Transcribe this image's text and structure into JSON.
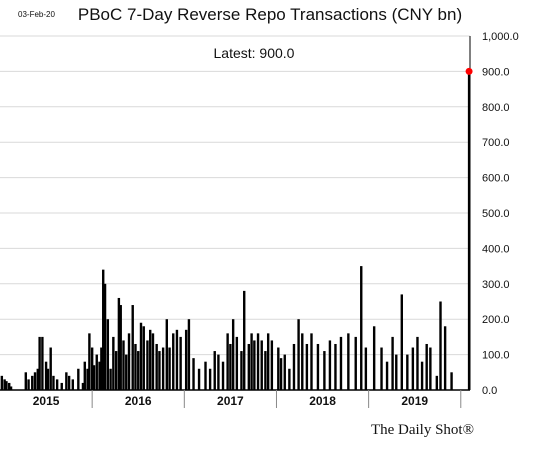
{
  "header": {
    "date": "03-Feb-20",
    "title": "PBoC 7-Day Reverse Repo Transactions (CNY bn)"
  },
  "annotation": {
    "latest": "Latest:  900.0"
  },
  "brand": "The Daily Shot®",
  "colors": {
    "bars": "#000000",
    "marker": "#ff0000",
    "grid": "#d9d9d9"
  },
  "chart_data": {
    "type": "bar",
    "title": "PBoC 7-Day Reverse Repo Transactions (CNY bn)",
    "xlabel": "",
    "ylabel": "",
    "ylim": [
      0,
      1000
    ],
    "yticks": [
      "1,000.0",
      "900.0",
      "800.0",
      "700.0",
      "600.0",
      "500.0",
      "400.0",
      "300.0",
      "200.0",
      "100.0",
      "0.0"
    ],
    "ytick_values": [
      1000,
      900,
      800,
      700,
      600,
      500,
      400,
      300,
      200,
      100,
      0
    ],
    "xlim": [
      2015.0,
      2020.1
    ],
    "year_labels": [
      "2015",
      "2016",
      "2017",
      "2018",
      "2019"
    ],
    "year_label_positions": [
      2015.5,
      2016.5,
      2017.5,
      2018.5,
      2019.5
    ],
    "year_boundaries": [
      2016,
      2017,
      2018,
      2019,
      2020
    ],
    "grid": true,
    "latest_value": 900,
    "latest_date": 2020.09,
    "series": [
      {
        "values": [
          [
            2015.02,
            40
          ],
          [
            2015.05,
            30
          ],
          [
            2015.07,
            25
          ],
          [
            2015.1,
            20
          ],
          [
            2015.12,
            10
          ],
          [
            2015.28,
            50
          ],
          [
            2015.31,
            30
          ],
          [
            2015.35,
            40
          ],
          [
            2015.38,
            50
          ],
          [
            2015.41,
            60
          ],
          [
            2015.43,
            150
          ],
          [
            2015.46,
            150
          ],
          [
            2015.5,
            80
          ],
          [
            2015.52,
            60
          ],
          [
            2015.55,
            120
          ],
          [
            2015.58,
            40
          ],
          [
            2015.62,
            30
          ],
          [
            2015.67,
            20
          ],
          [
            2015.72,
            50
          ],
          [
            2015.75,
            40
          ],
          [
            2015.79,
            30
          ],
          [
            2015.85,
            60
          ],
          [
            2015.9,
            20
          ],
          [
            2015.92,
            80
          ],
          [
            2015.95,
            60
          ],
          [
            2015.97,
            160
          ],
          [
            2016.0,
            120
          ],
          [
            2016.02,
            70
          ],
          [
            2016.05,
            100
          ],
          [
            2016.08,
            80
          ],
          [
            2016.1,
            120
          ],
          [
            2016.12,
            340
          ],
          [
            2016.14,
            300
          ],
          [
            2016.17,
            200
          ],
          [
            2016.2,
            60
          ],
          [
            2016.23,
            150
          ],
          [
            2016.26,
            110
          ],
          [
            2016.29,
            260
          ],
          [
            2016.31,
            240
          ],
          [
            2016.34,
            140
          ],
          [
            2016.37,
            100
          ],
          [
            2016.4,
            160
          ],
          [
            2016.44,
            240
          ],
          [
            2016.47,
            130
          ],
          [
            2016.5,
            110
          ],
          [
            2016.53,
            190
          ],
          [
            2016.56,
            180
          ],
          [
            2016.6,
            140
          ],
          [
            2016.63,
            170
          ],
          [
            2016.66,
            160
          ],
          [
            2016.7,
            130
          ],
          [
            2016.73,
            110
          ],
          [
            2016.77,
            120
          ],
          [
            2016.81,
            200
          ],
          [
            2016.84,
            120
          ],
          [
            2016.88,
            160
          ],
          [
            2016.92,
            170
          ],
          [
            2016.96,
            150
          ],
          [
            2017.02,
            170
          ],
          [
            2017.05,
            200
          ],
          [
            2017.1,
            90
          ],
          [
            2017.16,
            60
          ],
          [
            2017.23,
            80
          ],
          [
            2017.28,
            60
          ],
          [
            2017.33,
            110
          ],
          [
            2017.37,
            100
          ],
          [
            2017.42,
            80
          ],
          [
            2017.47,
            160
          ],
          [
            2017.5,
            130
          ],
          [
            2017.53,
            200
          ],
          [
            2017.57,
            150
          ],
          [
            2017.62,
            110
          ],
          [
            2017.65,
            280
          ],
          [
            2017.7,
            130
          ],
          [
            2017.73,
            160
          ],
          [
            2017.76,
            140
          ],
          [
            2017.8,
            160
          ],
          [
            2017.84,
            140
          ],
          [
            2017.88,
            110
          ],
          [
            2017.91,
            160
          ],
          [
            2017.95,
            140
          ],
          [
            2018.02,
            120
          ],
          [
            2018.05,
            90
          ],
          [
            2018.09,
            100
          ],
          [
            2018.14,
            60
          ],
          [
            2018.19,
            130
          ],
          [
            2018.24,
            200
          ],
          [
            2018.28,
            160
          ],
          [
            2018.33,
            130
          ],
          [
            2018.38,
            160
          ],
          [
            2018.45,
            130
          ],
          [
            2018.52,
            110
          ],
          [
            2018.58,
            140
          ],
          [
            2018.64,
            130
          ],
          [
            2018.7,
            150
          ],
          [
            2018.78,
            160
          ],
          [
            2018.86,
            150
          ],
          [
            2018.92,
            350
          ],
          [
            2018.97,
            120
          ],
          [
            2019.06,
            180
          ],
          [
            2019.14,
            120
          ],
          [
            2019.2,
            80
          ],
          [
            2019.26,
            150
          ],
          [
            2019.3,
            100
          ],
          [
            2019.36,
            270
          ],
          [
            2019.42,
            100
          ],
          [
            2019.48,
            120
          ],
          [
            2019.53,
            150
          ],
          [
            2019.58,
            80
          ],
          [
            2019.63,
            130
          ],
          [
            2019.67,
            120
          ],
          [
            2019.74,
            40
          ],
          [
            2019.78,
            250
          ],
          [
            2019.83,
            180
          ],
          [
            2019.9,
            50
          ],
          [
            2020.09,
            900
          ]
        ]
      }
    ]
  }
}
